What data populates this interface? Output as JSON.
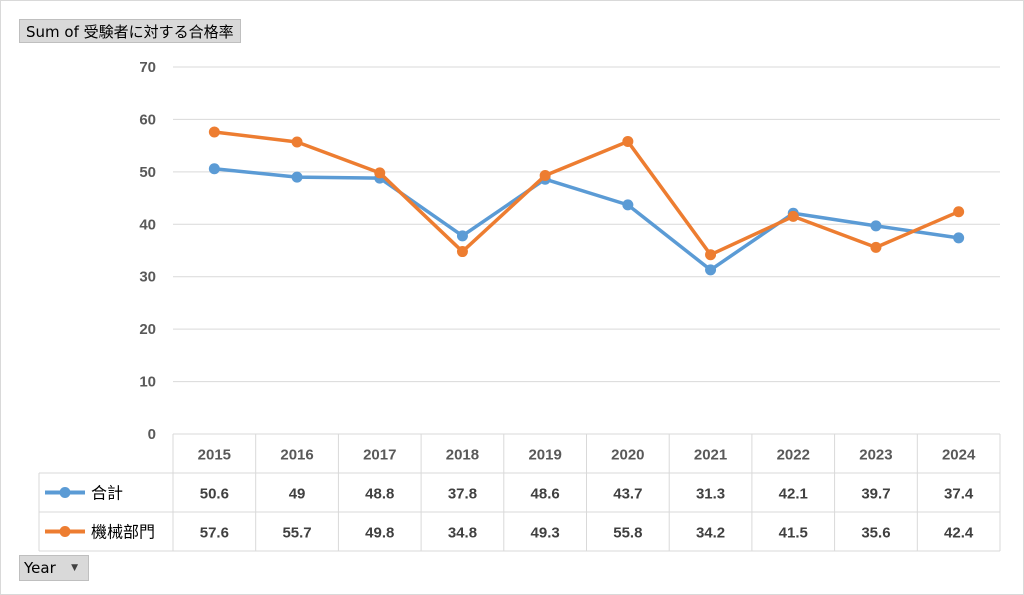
{
  "field_button": {
    "label": "Sum of 受験者に対する合格率"
  },
  "year_button": {
    "label": "Year",
    "icon": "dropdown-arrow-icon"
  },
  "chart_data": {
    "type": "line",
    "title": "",
    "xlabel": "",
    "ylabel": "",
    "x": [
      "2015",
      "2016",
      "2017",
      "2018",
      "2019",
      "2020",
      "2021",
      "2022",
      "2023",
      "2024"
    ],
    "ylim": [
      0,
      70
    ],
    "yticks": [
      0,
      10,
      20,
      30,
      40,
      50,
      60,
      70
    ],
    "grid": true,
    "legend": "data-table",
    "series": [
      {
        "name": "合計",
        "color": "#5b9bd5",
        "labels": [
          "50.6",
          "49",
          "48.8",
          "37.8",
          "48.6",
          "43.7",
          "31.3",
          "42.1",
          "39.7",
          "37.4"
        ],
        "values": [
          50.6,
          49,
          48.8,
          37.8,
          48.6,
          43.7,
          31.3,
          42.1,
          39.7,
          37.4
        ]
      },
      {
        "name": "機械部門",
        "color": "#ed7d31",
        "labels": [
          "57.6",
          "55.7",
          "49.8",
          "34.8",
          "49.3",
          "55.8",
          "34.2",
          "41.5",
          "35.6",
          "42.4"
        ],
        "values": [
          57.6,
          55.7,
          49.8,
          34.8,
          49.3,
          55.8,
          34.2,
          41.5,
          35.6,
          42.4
        ]
      }
    ]
  }
}
